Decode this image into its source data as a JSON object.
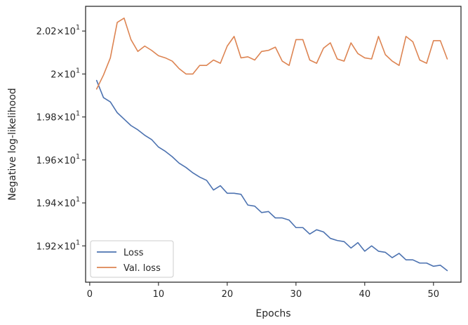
{
  "chart_data": {
    "type": "line",
    "xlabel": "Epochs",
    "ylabel": "Negative log-likelihood",
    "x_ticks": [
      "0",
      "10",
      "20",
      "30",
      "40",
      "50"
    ],
    "y_ticks": [
      {
        "mant": "1.92",
        "exp": "1"
      },
      {
        "mant": "1.94",
        "exp": "1"
      },
      {
        "mant": "1.96",
        "exp": "1"
      },
      {
        "mant": "1.98",
        "exp": "1"
      },
      {
        "mant": "2",
        "exp": "1"
      },
      {
        "mant": "2.02",
        "exp": "1"
      }
    ],
    "y_tick_values": [
      19.2,
      19.4,
      19.6,
      19.8,
      20.0,
      20.2
    ],
    "x_tick_values": [
      0,
      10,
      20,
      30,
      40,
      50
    ],
    "xlim": [
      -0.6,
      54.0
    ],
    "ylim": [
      19.031,
      20.315
    ],
    "legend_position": "lower-left",
    "series": [
      {
        "name": "Loss",
        "color": "#4c72b0",
        "x": [
          1,
          2,
          3,
          4,
          5,
          6,
          7,
          8,
          9,
          10,
          11,
          12,
          13,
          14,
          15,
          16,
          17,
          18,
          19,
          20,
          21,
          22,
          23,
          24,
          25,
          26,
          27,
          28,
          29,
          30,
          31,
          32,
          33,
          34,
          35,
          36,
          37,
          38,
          39,
          40,
          41,
          42,
          43,
          44,
          45,
          46,
          47,
          48,
          49,
          50,
          51,
          52
        ],
        "y": [
          19.97,
          19.89,
          19.87,
          19.82,
          19.79,
          19.76,
          19.74,
          19.715,
          19.695,
          19.66,
          19.64,
          19.615,
          19.585,
          19.565,
          19.54,
          19.52,
          19.505,
          19.46,
          19.48,
          19.445,
          19.445,
          19.44,
          19.39,
          19.385,
          19.355,
          19.36,
          19.33,
          19.33,
          19.32,
          19.285,
          19.285,
          19.255,
          19.275,
          19.265,
          19.235,
          19.225,
          19.22,
          19.19,
          19.215,
          19.175,
          19.2,
          19.175,
          19.17,
          19.145,
          19.165,
          19.135,
          19.135,
          19.12,
          19.12,
          19.105,
          19.11,
          19.085
        ]
      },
      {
        "name": "Val. loss",
        "color": "#dd8452",
        "x": [
          1,
          2,
          3,
          4,
          5,
          6,
          7,
          8,
          9,
          10,
          11,
          12,
          13,
          14,
          15,
          16,
          17,
          18,
          19,
          20,
          21,
          22,
          23,
          24,
          25,
          26,
          27,
          28,
          29,
          30,
          31,
          32,
          33,
          34,
          35,
          36,
          37,
          38,
          39,
          40,
          41,
          42,
          43,
          44,
          45,
          46,
          47,
          48,
          49,
          50,
          51,
          52
        ],
        "y": [
          19.93,
          19.995,
          20.075,
          20.24,
          20.26,
          20.16,
          20.105,
          20.13,
          20.11,
          20.085,
          20.075,
          20.06,
          20.025,
          20.0,
          20.0,
          20.04,
          20.04,
          20.065,
          20.05,
          20.13,
          20.175,
          20.075,
          20.08,
          20.065,
          20.105,
          20.11,
          20.125,
          20.06,
          20.04,
          20.16,
          20.16,
          20.065,
          20.05,
          20.12,
          20.145,
          20.07,
          20.06,
          20.145,
          20.095,
          20.075,
          20.07,
          20.175,
          20.09,
          20.06,
          20.04,
          20.175,
          20.15,
          20.065,
          20.05,
          20.155,
          20.155,
          20.07
        ]
      }
    ]
  }
}
